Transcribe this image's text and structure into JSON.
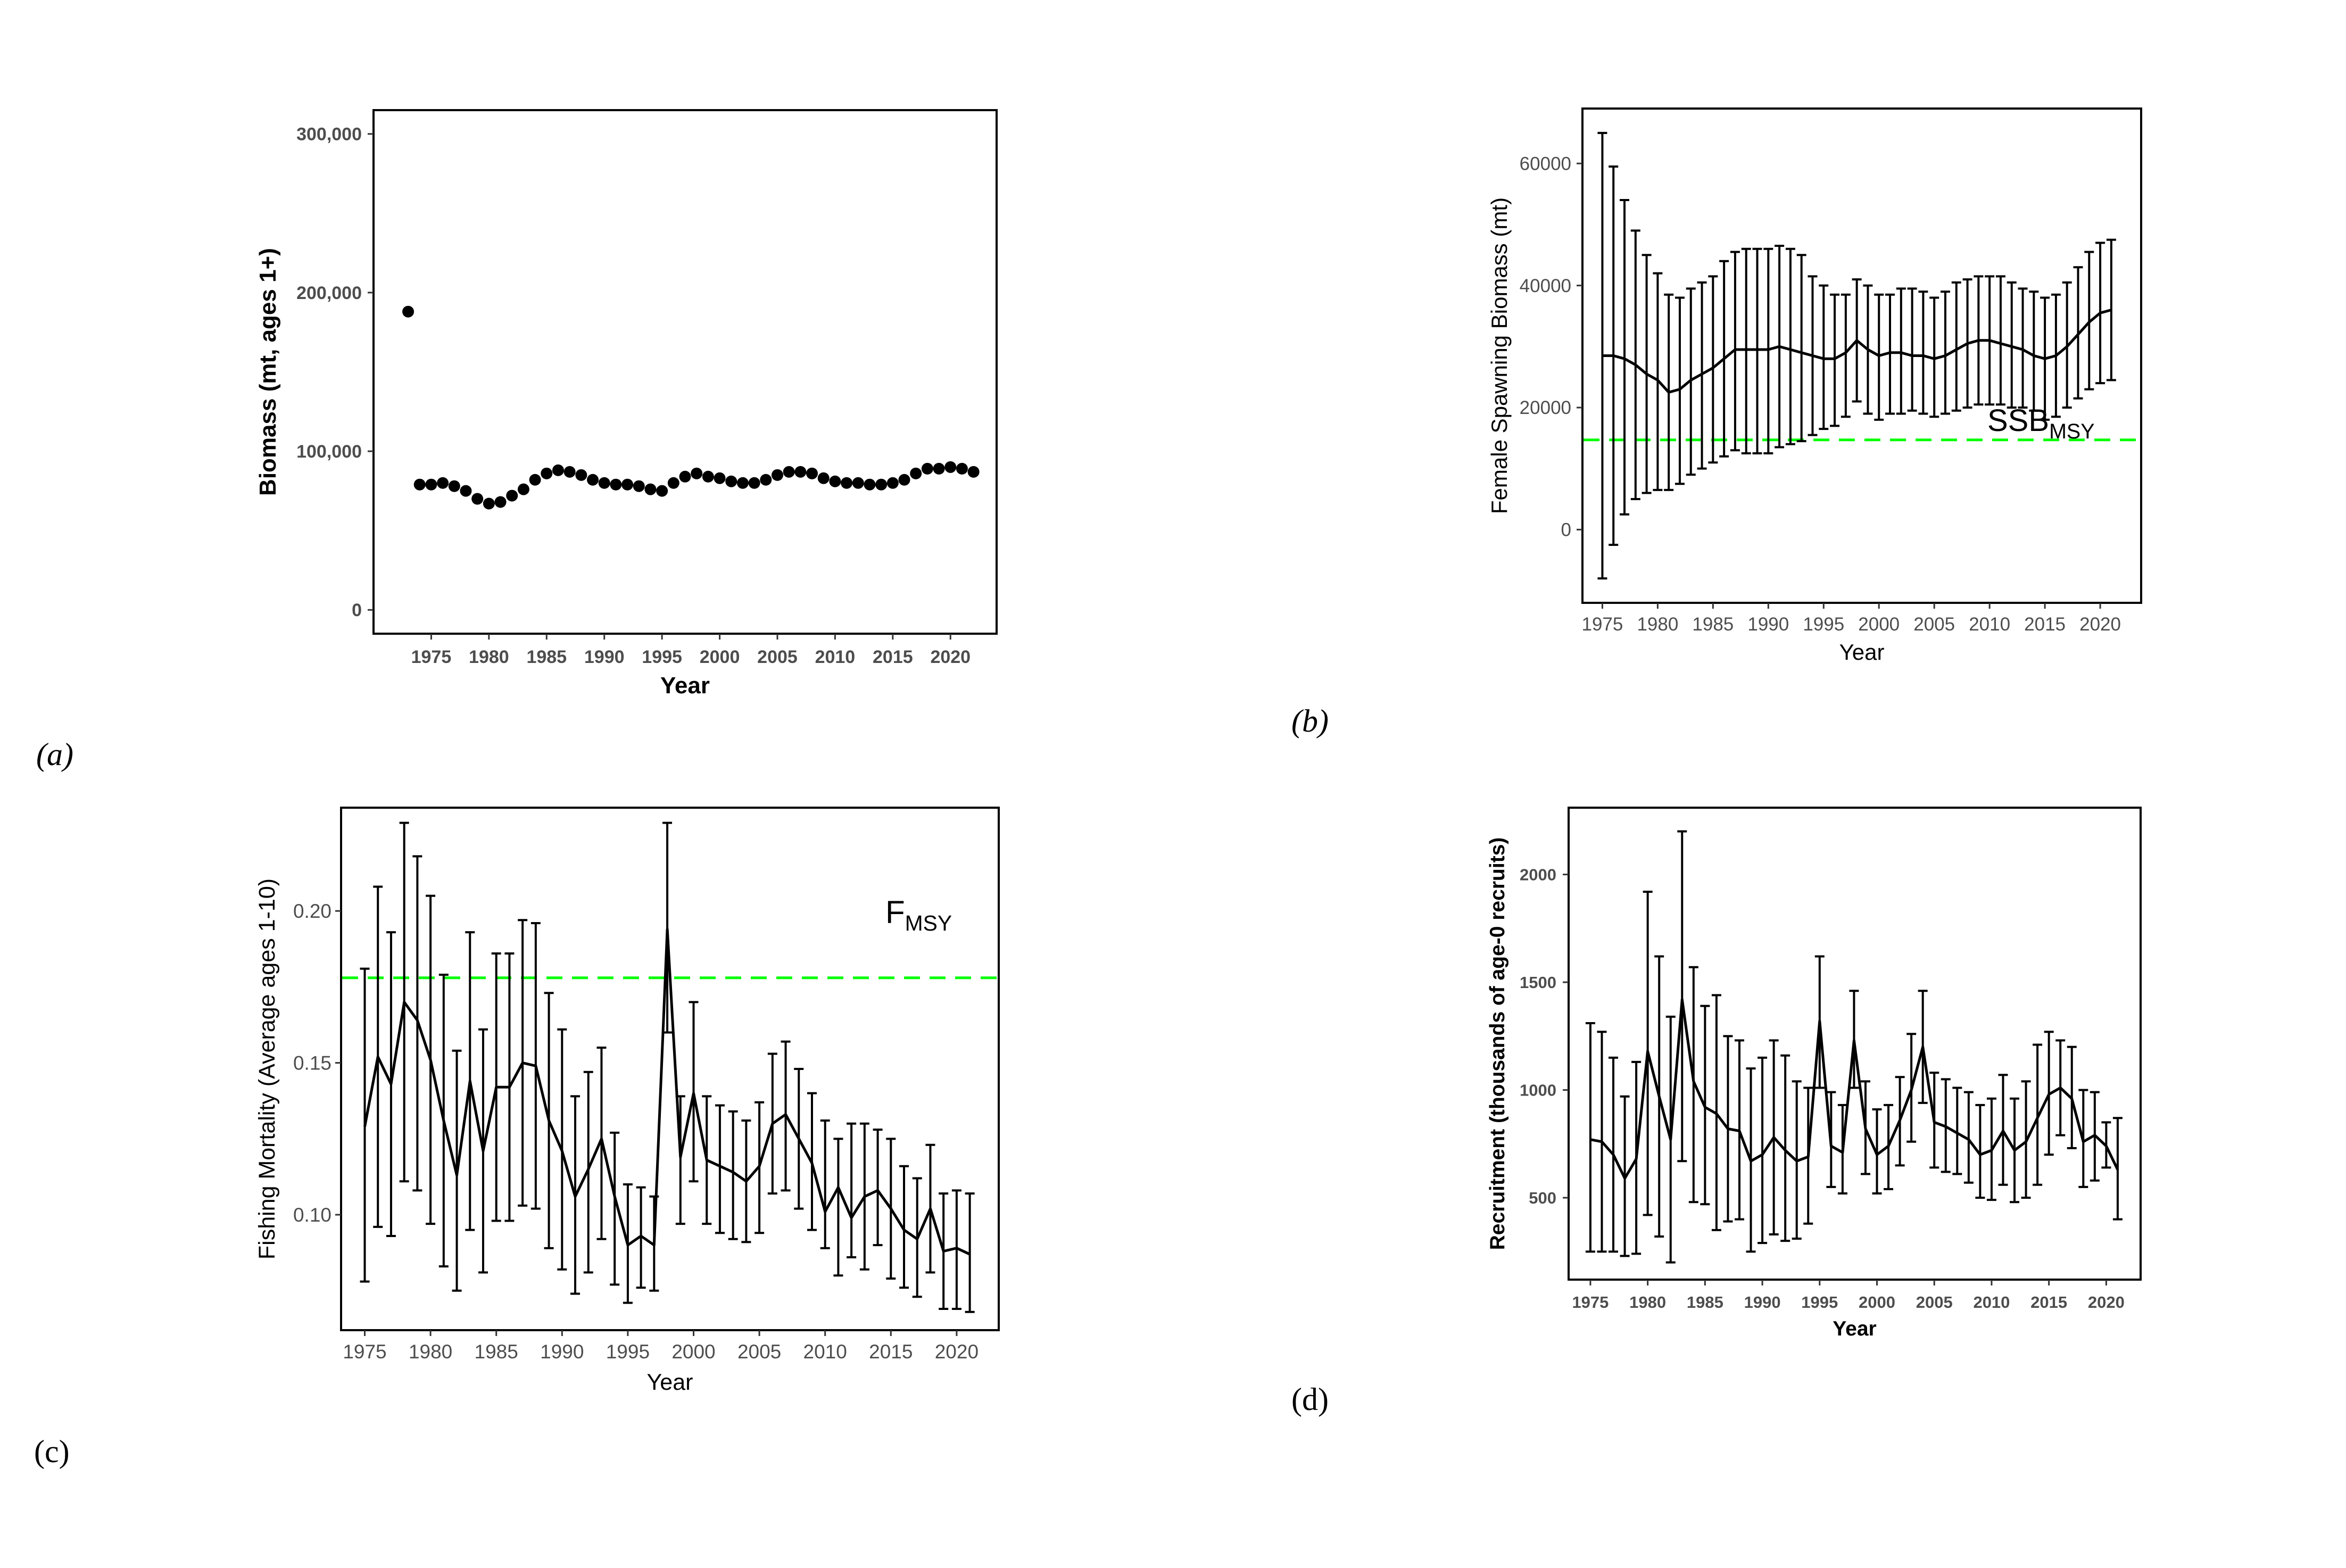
{
  "chart_data": [
    {
      "id": "a",
      "type": "scatter",
      "panel_label": "(a)",
      "title": "",
      "xlabel": "Year",
      "ylabel": "Biomass (mt, ages 1+)",
      "xlim": [
        1970,
        2024
      ],
      "ylim": [
        -15000,
        315000
      ],
      "xticks": [
        1975,
        1980,
        1985,
        1990,
        1995,
        2000,
        2005,
        2010,
        2015,
        2020
      ],
      "yticks": [
        0,
        100000,
        200000,
        300000
      ],
      "ytick_labels": [
        "0",
        "100,000",
        "200,000",
        "300,000"
      ],
      "grid": false,
      "x": [
        1973,
        1974,
        1975,
        1976,
        1977,
        1978,
        1979,
        1980,
        1981,
        1982,
        1983,
        1984,
        1985,
        1986,
        1987,
        1988,
        1989,
        1990,
        1991,
        1992,
        1993,
        1994,
        1995,
        1996,
        1997,
        1998,
        1999,
        2000,
        2001,
        2002,
        2003,
        2004,
        2005,
        2006,
        2007,
        2008,
        2009,
        2010,
        2011,
        2012,
        2013,
        2014,
        2015,
        2016,
        2017,
        2018,
        2019,
        2020,
        2021,
        2022
      ],
      "y": [
        188000,
        79000,
        79000,
        80000,
        78000,
        75000,
        70000,
        67000,
        68000,
        72000,
        76000,
        82000,
        86000,
        88000,
        87000,
        85000,
        82000,
        80000,
        79000,
        79000,
        78000,
        76000,
        75000,
        80000,
        84000,
        86000,
        84000,
        83000,
        81000,
        80000,
        80000,
        82000,
        85000,
        87000,
        87000,
        86000,
        83000,
        81000,
        80000,
        80000,
        79000,
        79000,
        80000,
        82000,
        86000,
        89000,
        89000,
        90000,
        89000,
        87000
      ]
    },
    {
      "id": "b",
      "type": "line",
      "panel_label": "(b)",
      "title": "",
      "xlabel": "Year",
      "ylabel": "Female Spawning Biomass (mt)",
      "xlim": [
        1973.2,
        2023.7
      ],
      "ylim": [
        -12000,
        69000
      ],
      "xticks": [
        1975,
        1980,
        1985,
        1990,
        1995,
        2000,
        2005,
        2010,
        2015,
        2020
      ],
      "yticks": [
        0,
        20000,
        40000,
        60000
      ],
      "ytick_labels": [
        "0",
        "20000",
        "40000",
        "60000"
      ],
      "grid": false,
      "reference_line": {
        "value": 14700,
        "label_main": "SSB",
        "label_sub": "MSY",
        "color": "#00ff00"
      },
      "x": [
        1975,
        1976,
        1977,
        1978,
        1979,
        1980,
        1981,
        1982,
        1983,
        1984,
        1985,
        1986,
        1987,
        1988,
        1989,
        1990,
        1991,
        1992,
        1993,
        1994,
        1995,
        1996,
        1997,
        1998,
        1999,
        2000,
        2001,
        2002,
        2003,
        2004,
        2005,
        2006,
        2007,
        2008,
        2009,
        2010,
        2011,
        2012,
        2013,
        2014,
        2015,
        2016,
        2017,
        2018,
        2019,
        2020,
        2021
      ],
      "y": [
        28500,
        28500,
        28000,
        27000,
        25500,
        24500,
        22500,
        23000,
        24500,
        25500,
        26500,
        28000,
        29500,
        29500,
        29500,
        29500,
        30000,
        29500,
        29000,
        28500,
        28000,
        28000,
        29000,
        31000,
        29500,
        28500,
        29000,
        29000,
        28500,
        28500,
        28000,
        28500,
        29500,
        30500,
        31000,
        31000,
        30500,
        30000,
        29500,
        28500,
        28000,
        28500,
        30000,
        32000,
        34000,
        35500,
        36000
      ],
      "upper": [
        65000,
        59500,
        54000,
        49000,
        45000,
        42000,
        38500,
        38000,
        39500,
        40500,
        41500,
        44000,
        45500,
        46000,
        46000,
        46000,
        46500,
        46000,
        45000,
        41500,
        40000,
        38500,
        38500,
        41000,
        40000,
        38500,
        38500,
        39500,
        39500,
        39000,
        38000,
        39000,
        40500,
        41000,
        41500,
        41500,
        41500,
        40500,
        39500,
        39000,
        38000,
        38500,
        40500,
        43000,
        45500,
        47000,
        47500
      ],
      "lower": [
        -8000,
        -2500,
        2500,
        5000,
        6000,
        6500,
        6500,
        7500,
        9000,
        10000,
        11000,
        12000,
        13000,
        12500,
        12500,
        12500,
        13500,
        14000,
        14500,
        15500,
        16500,
        17000,
        18500,
        21000,
        19000,
        18000,
        19000,
        19000,
        19500,
        19000,
        18500,
        19000,
        19500,
        20000,
        20500,
        20500,
        20500,
        20000,
        20000,
        19500,
        18000,
        18500,
        20000,
        21500,
        23000,
        24000,
        24500
      ]
    },
    {
      "id": "c",
      "type": "line",
      "panel_label": "(c)",
      "title": "",
      "xlabel": "Year",
      "ylabel": "Fishing Mortality (Average ages 1-10)",
      "xlim": [
        1973.2,
        2023.2
      ],
      "ylim": [
        0.062,
        0.234
      ],
      "xticks": [
        1975,
        1980,
        1985,
        1990,
        1995,
        2000,
        2005,
        2010,
        2015,
        2020
      ],
      "yticks": [
        0.1,
        0.15,
        0.2
      ],
      "ytick_labels": [
        "0.10",
        "0.15",
        "0.20"
      ],
      "grid": false,
      "reference_line": {
        "value": 0.178,
        "label_main": "F",
        "label_sub": "MSY",
        "color": "#00ff00"
      },
      "x": [
        1975,
        1976,
        1977,
        1978,
        1979,
        1980,
        1981,
        1982,
        1983,
        1984,
        1985,
        1986,
        1987,
        1988,
        1989,
        1990,
        1991,
        1992,
        1993,
        1994,
        1995,
        1996,
        1997,
        1998,
        1999,
        2000,
        2001,
        2002,
        2003,
        2004,
        2005,
        2006,
        2007,
        2008,
        2009,
        2010,
        2011,
        2012,
        2013,
        2014,
        2015,
        2016,
        2017,
        2018,
        2019,
        2020,
        2021
      ],
      "y": [
        0.129,
        0.152,
        0.143,
        0.17,
        0.164,
        0.151,
        0.131,
        0.113,
        0.144,
        0.121,
        0.142,
        0.142,
        0.15,
        0.149,
        0.131,
        0.121,
        0.106,
        0.115,
        0.125,
        0.106,
        0.09,
        0.093,
        0.09,
        0.194,
        0.119,
        0.14,
        0.118,
        0.116,
        0.114,
        0.111,
        0.116,
        0.13,
        0.133,
        0.125,
        0.117,
        0.101,
        0.109,
        0.099,
        0.106,
        0.108,
        0.102,
        0.095,
        0.092,
        0.102,
        0.088,
        0.089,
        0.087
      ],
      "upper": [
        0.181,
        0.208,
        0.193,
        0.229,
        0.218,
        0.205,
        0.179,
        0.154,
        0.193,
        0.161,
        0.186,
        0.186,
        0.197,
        0.196,
        0.173,
        0.161,
        0.139,
        0.147,
        0.155,
        0.127,
        0.11,
        0.109,
        0.106,
        0.229,
        0.139,
        0.17,
        0.139,
        0.136,
        0.134,
        0.131,
        0.137,
        0.153,
        0.157,
        0.148,
        0.14,
        0.131,
        0.125,
        0.13,
        0.13,
        0.128,
        0.125,
        0.116,
        0.112,
        0.123,
        0.107,
        0.108,
        0.107
      ],
      "lower": [
        0.078,
        0.096,
        0.093,
        0.111,
        0.108,
        0.097,
        0.083,
        0.075,
        0.095,
        0.081,
        0.098,
        0.098,
        0.103,
        0.102,
        0.089,
        0.082,
        0.074,
        0.081,
        0.092,
        0.077,
        0.071,
        0.076,
        0.075,
        0.16,
        0.097,
        0.111,
        0.097,
        0.094,
        0.092,
        0.091,
        0.094,
        0.107,
        0.108,
        0.102,
        0.095,
        0.089,
        0.08,
        0.086,
        0.082,
        0.09,
        0.079,
        0.076,
        0.073,
        0.081,
        0.069,
        0.069,
        0.068
      ]
    },
    {
      "id": "d",
      "type": "line",
      "panel_label": "(d)",
      "title": "",
      "xlabel": "Year",
      "ylabel": "Recruitment (thousands of age-0 recruits)",
      "xlim": [
        1973.1,
        2023.0
      ],
      "ylim": [
        120,
        2310
      ],
      "xticks": [
        1975,
        1980,
        1985,
        1990,
        1995,
        2000,
        2005,
        2010,
        2015,
        2020
      ],
      "yticks": [
        500,
        1000,
        1500,
        2000
      ],
      "ytick_labels": [
        "500",
        "1000",
        "1500",
        "2000"
      ],
      "grid": false,
      "x": [
        1975,
        1976,
        1977,
        1978,
        1979,
        1980,
        1981,
        1982,
        1983,
        1984,
        1985,
        1986,
        1987,
        1988,
        1989,
        1990,
        1991,
        1992,
        1993,
        1994,
        1995,
        1996,
        1997,
        1998,
        1999,
        2000,
        2001,
        2002,
        2003,
        2004,
        2005,
        2006,
        2007,
        2008,
        2009,
        2010,
        2011,
        2012,
        2013,
        2014,
        2015,
        2016,
        2017,
        2018,
        2019,
        2020,
        2021
      ],
      "y": [
        770,
        760,
        700,
        590,
        680,
        1180,
        970,
        770,
        1420,
        1040,
        920,
        890,
        820,
        810,
        670,
        700,
        780,
        720,
        670,
        690,
        1320,
        740,
        710,
        1230,
        820,
        700,
        740,
        860,
        1000,
        1200,
        850,
        830,
        800,
        770,
        700,
        720,
        810,
        720,
        760,
        870,
        980,
        1010,
        960,
        760,
        790,
        740,
        630
      ],
      "upper": [
        1310,
        1270,
        1150,
        970,
        1130,
        1920,
        1620,
        1340,
        2200,
        1570,
        1390,
        1440,
        1250,
        1230,
        1100,
        1150,
        1230,
        1160,
        1040,
        1010,
        1620,
        990,
        930,
        1460,
        1040,
        910,
        930,
        1060,
        1260,
        1460,
        1080,
        1050,
        1010,
        990,
        930,
        960,
        1070,
        960,
        1040,
        1210,
        1270,
        1230,
        1200,
        1000,
        990,
        850,
        870
      ],
      "lower": [
        250,
        250,
        250,
        230,
        240,
        420,
        320,
        200,
        670,
        480,
        470,
        350,
        390,
        400,
        250,
        290,
        330,
        300,
        310,
        380,
        1010,
        550,
        520,
        1010,
        610,
        520,
        540,
        650,
        760,
        940,
        640,
        620,
        610,
        570,
        500,
        490,
        560,
        480,
        500,
        560,
        700,
        790,
        730,
        550,
        580,
        640,
        400
      ]
    }
  ]
}
